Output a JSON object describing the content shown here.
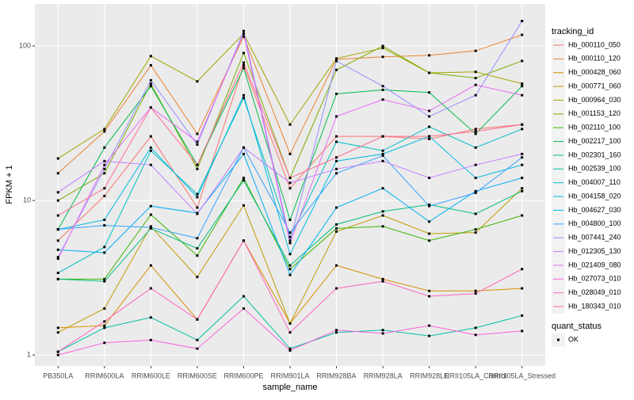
{
  "chart_data": {
    "type": "line",
    "x_label": "sample_name",
    "y_label": "FPKM + 1",
    "log_y": true,
    "grid": true,
    "legend_title": "tracking_id",
    "legend_position": "right",
    "shape_legend_title": "quant_status",
    "shape_legend_entries": [
      "OK"
    ],
    "categories": [
      "PB350LA",
      "RRIM600LA",
      "RRIM600LE",
      "RRIM600SE",
      "RRIM600PE",
      "RRIM901LA",
      "RRIM928BA",
      "RRIM928LA",
      "RRIM928LE",
      "RRII105LA_Control",
      "RRII105LA_Stressed"
    ],
    "ylim": [
      0.85,
      187
    ],
    "yticks": [
      1,
      10,
      100
    ],
    "series": [
      {
        "name": "Hb_000110_050",
        "color": "#F8766D",
        "values": [
          5.5,
          10.7,
          26,
          9,
          75,
          12,
          26,
          26,
          25,
          29,
          31
        ]
      },
      {
        "name": "Hb_000110_120",
        "color": "#EA8331",
        "values": [
          15,
          28,
          75,
          27,
          115,
          20,
          82,
          85,
          87,
          93,
          118
        ]
      },
      {
        "name": "Hb_000428_060",
        "color": "#D89000",
        "values": [
          1.5,
          1.55,
          3.8,
          1.7,
          5.5,
          1.6,
          3.8,
          3.1,
          2.6,
          2.6,
          2.7
        ]
      },
      {
        "name": "Hb_000771_060",
        "color": "#C09B00",
        "values": [
          1.4,
          2.0,
          6.8,
          3.2,
          9.3,
          1.6,
          6.3,
          8.0,
          6.1,
          6.2,
          12
        ]
      },
      {
        "name": "Hb_000964_030",
        "color": "#A3A500",
        "values": [
          18.7,
          29,
          86,
          59,
          120,
          31,
          83,
          97,
          67,
          68,
          57
        ]
      },
      {
        "name": "Hb_001153_120",
        "color": "#7CAE00",
        "values": [
          10,
          15,
          57,
          16,
          90,
          14,
          70,
          100,
          67,
          62,
          80
        ]
      },
      {
        "name": "Hb_002110_100",
        "color": "#39B600",
        "values": [
          3.1,
          3.1,
          8.1,
          4.4,
          14,
          3.6,
          6.6,
          6.8,
          5.5,
          6.5,
          8
        ]
      },
      {
        "name": "Hb_002217_100",
        "color": "#00BB4E",
        "values": [
          6.5,
          22,
          55,
          17,
          72,
          7.5,
          49,
          52,
          50,
          27,
          55
        ]
      },
      {
        "name": "Hb_002301_160",
        "color": "#00BF7D",
        "values": [
          3.1,
          3.0,
          6.6,
          4.9,
          13.5,
          3.8,
          7.0,
          8.5,
          9.4,
          8.2,
          11.5
        ]
      },
      {
        "name": "Hb_002539_100",
        "color": "#00C1A3",
        "values": [
          1.05,
          1.5,
          1.75,
          1.25,
          2.4,
          1.1,
          1.4,
          1.45,
          1.33,
          1.5,
          1.8
        ]
      },
      {
        "name": "Hb_004007_110",
        "color": "#00BFC4",
        "values": [
          3.4,
          5.0,
          21,
          11,
          46,
          5.8,
          24,
          21,
          30,
          22,
          29
        ]
      },
      {
        "name": "Hb_004158_020",
        "color": "#00BAE0",
        "values": [
          6.5,
          7.5,
          22,
          10.5,
          48,
          4.5,
          18,
          20,
          26,
          14,
          17
        ]
      },
      {
        "name": "Hb_004627_030",
        "color": "#00B0F6",
        "values": [
          4.8,
          4.6,
          9.2,
          8.3,
          20,
          3.3,
          9.0,
          12,
          7.3,
          11.5,
          14
        ]
      },
      {
        "name": "Hb_004800_100",
        "color": "#35A2FF",
        "values": [
          6.5,
          6.9,
          6.7,
          5.7,
          22,
          6.2,
          15,
          19.5,
          9.2,
          11.2,
          19
        ]
      },
      {
        "name": "Hb_007441_240",
        "color": "#9590FF",
        "values": [
          4.3,
          16,
          60,
          23,
          125,
          5.5,
          80,
          55,
          35,
          48,
          145
        ]
      },
      {
        "name": "Hb_012305_130",
        "color": "#C77CFF",
        "values": [
          11.3,
          18,
          17,
          8.2,
          22,
          13,
          16,
          18,
          14,
          17,
          20
        ]
      },
      {
        "name": "Hb_021409_080",
        "color": "#E76BF3",
        "values": [
          4.2,
          17,
          40,
          24,
          120,
          5.3,
          35,
          45,
          38,
          56,
          48
        ]
      },
      {
        "name": "Hb_027073_010",
        "color": "#FA62DB",
        "values": [
          1.0,
          1.2,
          1.25,
          1.1,
          2.0,
          1.07,
          1.45,
          1.38,
          1.55,
          1.35,
          1.43
        ]
      },
      {
        "name": "Hb_028049_010",
        "color": "#FF62BC",
        "values": [
          1.05,
          1.65,
          2.7,
          1.7,
          5.5,
          1.4,
          2.7,
          3.0,
          2.4,
          2.5,
          3.6
        ]
      },
      {
        "name": "Hb_180343_010",
        "color": "#FF6C91",
        "values": [
          8,
          12,
          40,
          17,
          78,
          14,
          19,
          26,
          26,
          28,
          31
        ]
      }
    ]
  }
}
